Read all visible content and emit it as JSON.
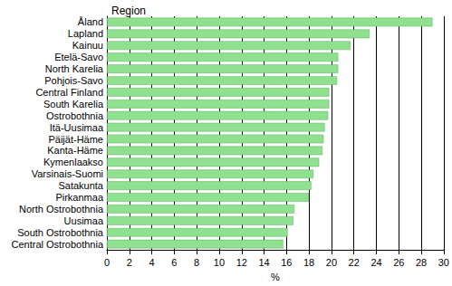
{
  "chart_data": {
    "type": "bar",
    "orientation": "horizontal",
    "ylabel": "Region",
    "xlabel": "%",
    "categories": [
      "Åland",
      "Lapland",
      "Kainuu",
      "Etelä-Savo",
      "North Karelia",
      "Pohjois-Savo",
      "Central Finland",
      "South Karelia",
      "Ostrobothnia",
      "Itä-Uusimaa",
      "Päijät-Häme",
      "Kanta-Häme",
      "Kymenlaakso",
      "Varsinais-Suomi",
      "Satakunta",
      "Pirkanmaa",
      "North Ostrobothnia",
      "Uusimaa",
      "South Ostrobothnia",
      "Central Ostrobothnia"
    ],
    "values": [
      29.0,
      23.4,
      21.7,
      20.6,
      20.6,
      20.5,
      19.8,
      19.8,
      19.7,
      19.4,
      19.3,
      19.2,
      18.9,
      18.4,
      18.2,
      18.0,
      16.7,
      16.6,
      16.1,
      15.7
    ],
    "color": "#8fe08f",
    "xlim": [
      0,
      30
    ],
    "xticks": [
      0,
      2,
      4,
      6,
      8,
      10,
      12,
      14,
      16,
      18,
      20,
      22,
      24,
      26,
      28,
      30
    ],
    "grid": true
  }
}
